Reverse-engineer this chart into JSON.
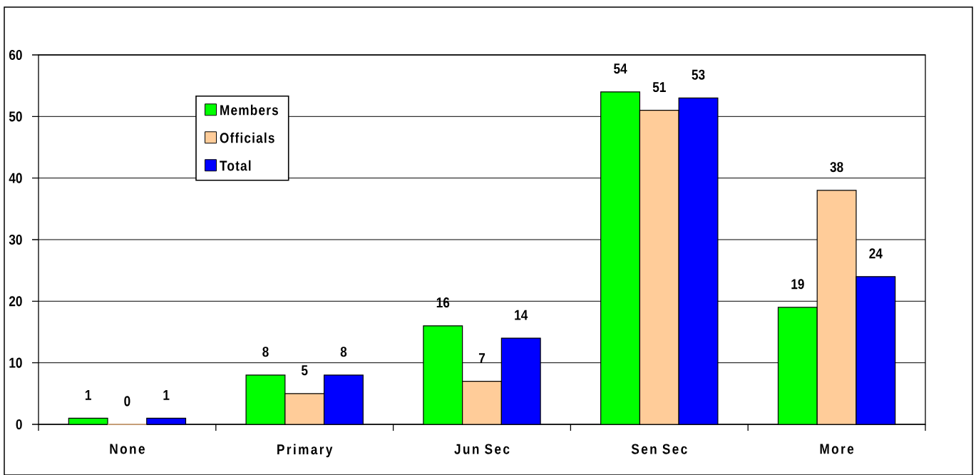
{
  "chart_data": {
    "type": "bar",
    "categories": [
      "None",
      "Primary",
      "Jun Sec",
      "Sen Sec",
      "More"
    ],
    "series": [
      {
        "name": "Members",
        "color": "#00ff00",
        "values": [
          1,
          8,
          16,
          54,
          19
        ]
      },
      {
        "name": "Officials",
        "color": "#ffcc99",
        "values": [
          0,
          5,
          7,
          51,
          38
        ]
      },
      {
        "name": "Total",
        "color": "#0000ff",
        "values": [
          1,
          8,
          14,
          53,
          24
        ]
      }
    ],
    "ylim": [
      0,
      60
    ],
    "yticks": [
      0,
      10,
      20,
      30,
      40,
      50,
      60
    ],
    "grid": "y",
    "legend": "top left",
    "data_labels": true
  }
}
